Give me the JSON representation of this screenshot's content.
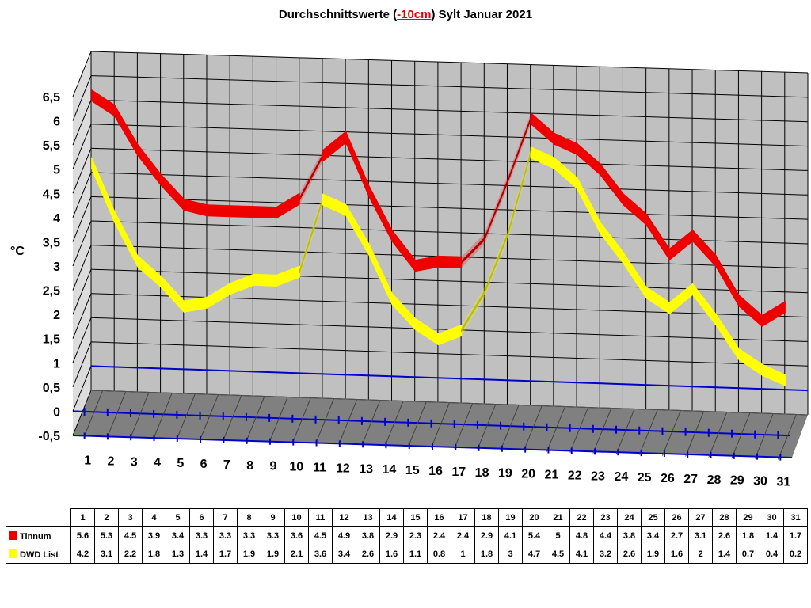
{
  "title": {
    "before": "Durchschnittswerte (",
    "highlight": "-10cm",
    "after": ") Sylt Januar 2021"
  },
  "colors": {
    "tinnum": "#ee0000",
    "dwd": "#ffff00",
    "wall": "#c0c0c0",
    "floor": "#808080",
    "axis": "#0000cc"
  },
  "chart_data": {
    "type": "line",
    "title": "Durchschnittswerte (-10cm) Sylt Januar 2021",
    "ylabel": "°C",
    "xlabel": "",
    "ylim": [
      -0.5,
      6.5
    ],
    "y_ticks": [
      "6,5",
      "6",
      "5,5",
      "5",
      "4,5",
      "4",
      "3,5",
      "3",
      "2,5",
      "2",
      "1,5",
      "1",
      "0,5",
      "0",
      "-0,5"
    ],
    "categories": [
      "1",
      "2",
      "3",
      "4",
      "5",
      "6",
      "7",
      "8",
      "9",
      "10",
      "11",
      "12",
      "13",
      "14",
      "15",
      "16",
      "17",
      "18",
      "19",
      "20",
      "21",
      "22",
      "23",
      "24",
      "25",
      "26",
      "27",
      "28",
      "29",
      "30",
      "31"
    ],
    "grid": true,
    "series": [
      {
        "name": "Tinnum",
        "values": [
          5.6,
          5.3,
          4.5,
          3.9,
          3.4,
          3.3,
          3.3,
          3.3,
          3.3,
          3.6,
          4.5,
          4.9,
          3.8,
          2.9,
          2.3,
          2.4,
          2.4,
          2.9,
          4.1,
          5.4,
          5,
          4.8,
          4.4,
          3.8,
          3.4,
          2.7,
          3.1,
          2.6,
          1.8,
          1.4,
          1.7
        ]
      },
      {
        "name": "DWD List",
        "values": [
          4.2,
          3.1,
          2.2,
          1.8,
          1.3,
          1.4,
          1.7,
          1.9,
          1.9,
          2.1,
          3.6,
          3.4,
          2.6,
          1.6,
          1.1,
          0.8,
          1,
          1.8,
          3,
          4.7,
          4.5,
          4.1,
          3.2,
          2.6,
          1.9,
          1.6,
          2,
          1.4,
          0.7,
          0.4,
          0.2
        ]
      }
    ]
  },
  "table": {
    "row_labels": [
      "Tinnum",
      "DWD List"
    ],
    "tinnum_cells": [
      "5.6",
      "5.3",
      "4.5",
      "3.9",
      "3.4",
      "3.3",
      "3.3",
      "3.3",
      "3.3",
      "3.6",
      "4.5",
      "4.9",
      "3.8",
      "2.9",
      "2.3",
      "2.4",
      "2.4",
      "2.9",
      "4.1",
      "5.4",
      "5",
      "4.8",
      "4.4",
      "3.8",
      "3.4",
      "2.7",
      "3.1",
      "2.6",
      "1.8",
      "1.4",
      "1.7"
    ],
    "dwd_cells": [
      "4.2",
      "3.1",
      "2.2",
      "1.8",
      "1.3",
      "1.4",
      "1.7",
      "1.9",
      "1.9",
      "2.1",
      "3.6",
      "3.4",
      "2.6",
      "1.6",
      "1.1",
      "0.8",
      "1",
      "1.8",
      "3",
      "4.7",
      "4.5",
      "4.1",
      "3.2",
      "2.6",
      "1.9",
      "1.6",
      "2",
      "1.4",
      "0.7",
      "0.4",
      "0.2"
    ]
  }
}
